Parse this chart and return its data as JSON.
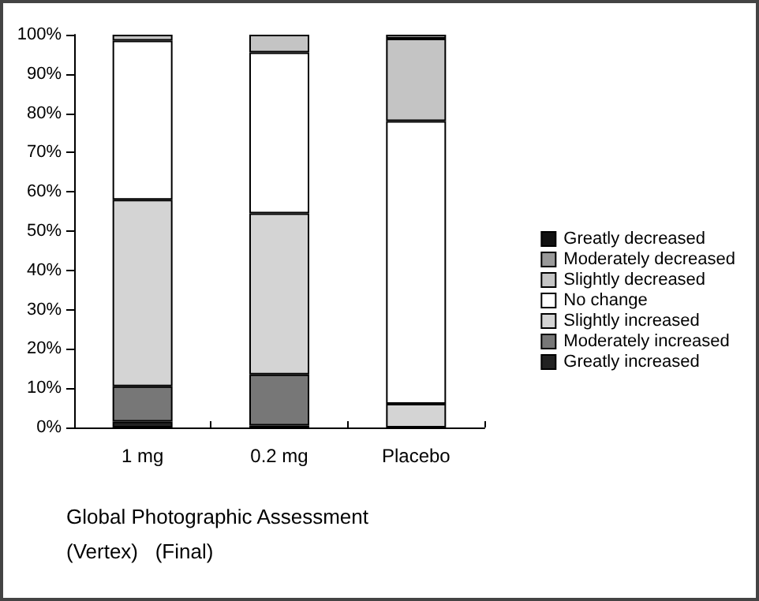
{
  "chart_data": {
    "type": "bar",
    "stacked": true,
    "xlabel": "Global Photographic Assessment",
    "annotations": [
      "(Vertex)   (Final)"
    ],
    "categories": [
      "1 mg",
      "0.2 mg",
      "Placebo"
    ],
    "series": [
      {
        "name": "Greatly increased",
        "color": "#222222",
        "values": [
          1.5,
          0.5,
          0
        ]
      },
      {
        "name": "Moderately increased",
        "color": "#777777",
        "values": [
          9,
          13,
          0
        ]
      },
      {
        "name": "Slightly increased",
        "color": "#d4d4d4",
        "values": [
          47.5,
          41,
          6
        ]
      },
      {
        "name": "No change",
        "color": "#ffffff",
        "values": [
          40.5,
          41,
          72
        ]
      },
      {
        "name": "Slightly decreased",
        "color": "#c4c4c4",
        "values": [
          1.5,
          4.5,
          21
        ]
      },
      {
        "name": "Moderately decreased",
        "color": "#999999",
        "values": [
          0,
          0,
          1
        ]
      },
      {
        "name": "Greatly decreased",
        "color": "#111111",
        "values": [
          0,
          0,
          0
        ]
      }
    ],
    "ylim": [
      0,
      100
    ],
    "yticks": [
      {
        "value": 0,
        "label": "0%"
      },
      {
        "value": 10,
        "label": "10%"
      },
      {
        "value": 20,
        "label": "20%"
      },
      {
        "value": 30,
        "label": "30%"
      },
      {
        "value": 40,
        "label": "40%"
      },
      {
        "value": 50,
        "label": "50%"
      },
      {
        "value": 60,
        "label": "60%"
      },
      {
        "value": 70,
        "label": "70%"
      },
      {
        "value": 80,
        "label": "80%"
      },
      {
        "value": 90,
        "label": "90%"
      },
      {
        "value": 100,
        "label": "100%"
      }
    ],
    "grid": false,
    "legend": "right"
  }
}
